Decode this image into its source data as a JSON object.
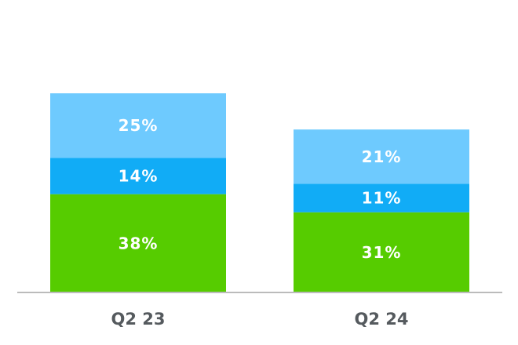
{
  "chart_data": {
    "type": "bar",
    "stacked": true,
    "categories": [
      "Q2 23",
      "Q2 24"
    ],
    "series": [
      {
        "color": "#56cc00",
        "values": [
          38,
          31
        ],
        "labels": [
          "38%",
          "31%"
        ]
      },
      {
        "color": "#11acf6",
        "values": [
          14,
          11
        ],
        "labels": [
          "14%",
          "11%"
        ]
      },
      {
        "color": "#6ecafe",
        "values": [
          25,
          21
        ],
        "labels": [
          "25%",
          "21%"
        ]
      }
    ],
    "ylim": [
      0,
      87
    ],
    "grid": false,
    "legend": "none",
    "axis_color": "#bbbbbb"
  }
}
